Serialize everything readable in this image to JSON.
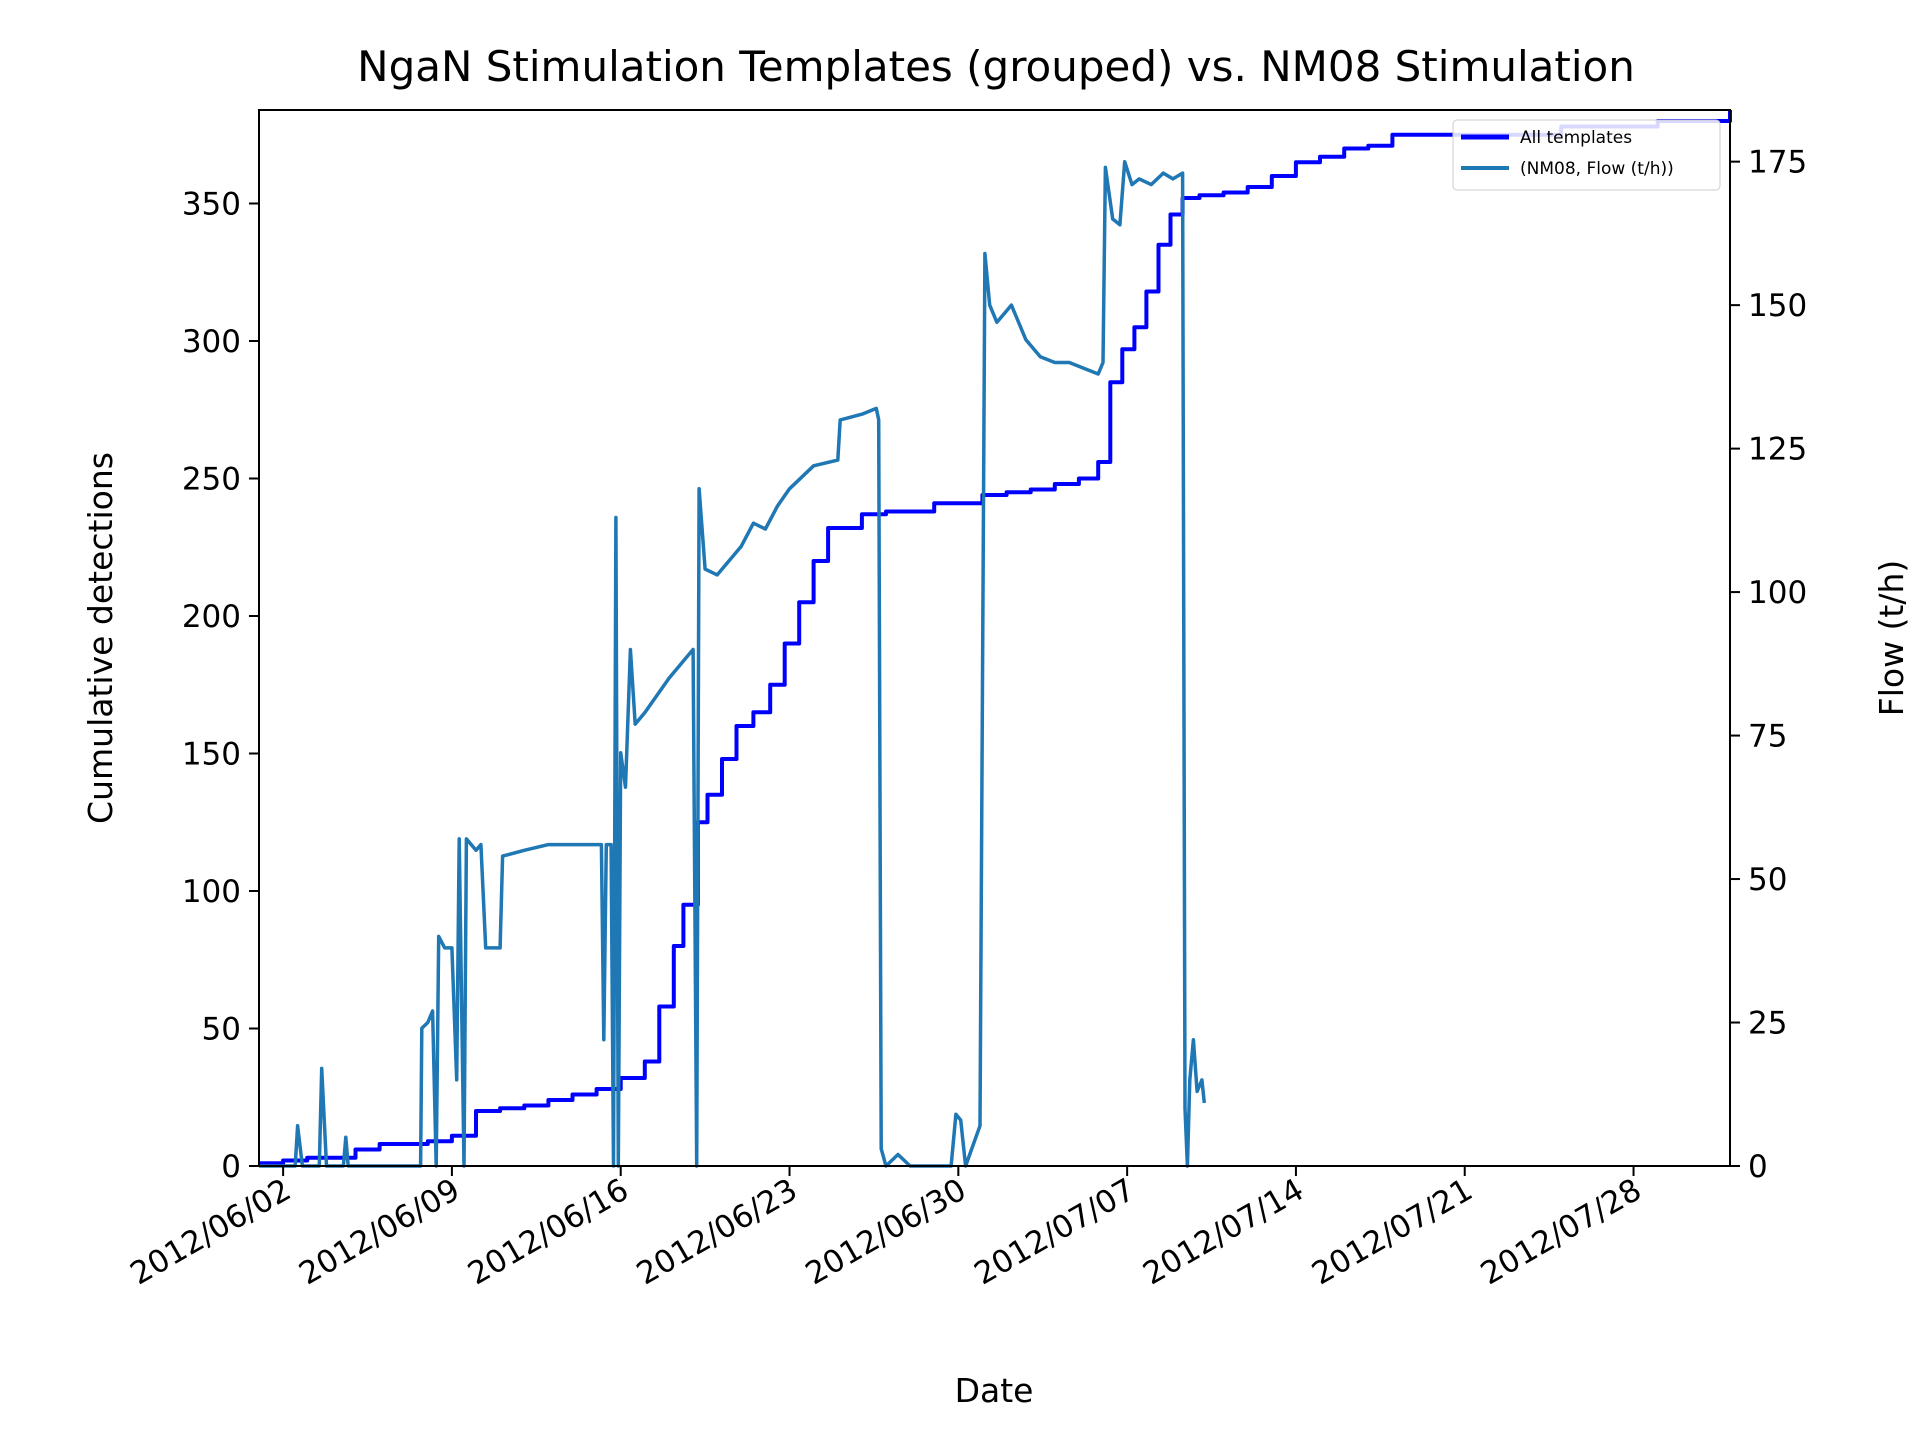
{
  "chart_data": {
    "type": "line",
    "title": "NgaN Stimulation Templates (grouped) vs. NM08 Stimulation",
    "xlabel": "Date",
    "ylabel_left": "Cumulative detections",
    "ylabel_right": "Flow (t/h)",
    "x_ticks": [
      "2012/06/02",
      "2012/06/09",
      "2012/06/16",
      "2012/06/23",
      "2012/06/30",
      "2012/07/07",
      "2012/07/14",
      "2012/07/21",
      "2012/07/28"
    ],
    "x_range": [
      "2012/06/01",
      "2012/08/01"
    ],
    "y_left_ticks": [
      0,
      50,
      100,
      150,
      200,
      250,
      300,
      350
    ],
    "y_left_range": [
      0,
      384
    ],
    "y_right_ticks": [
      0,
      25,
      50,
      75,
      100,
      125,
      150,
      175
    ],
    "y_right_range": [
      0,
      184
    ],
    "legend_position": "upper right",
    "series": [
      {
        "name": "All templates",
        "axis": "left",
        "color": "#0000ff",
        "points": [
          [
            "2012/06/01",
            1
          ],
          [
            "2012/06/02",
            2
          ],
          [
            "2012/06/03",
            3
          ],
          [
            "2012/06/05",
            6
          ],
          [
            "2012/06/06",
            8
          ],
          [
            "2012/06/08",
            9
          ],
          [
            "2012/06/09",
            11
          ],
          [
            "2012/06/10",
            20
          ],
          [
            "2012/06/11",
            21
          ],
          [
            "2012/06/12",
            22
          ],
          [
            "2012/06/13",
            24
          ],
          [
            "2012/06/14",
            26
          ],
          [
            "2012/06/15",
            28
          ],
          [
            "2012/06/16",
            32
          ],
          [
            "2012/06/17",
            38
          ],
          [
            "2012/06/17.6",
            58
          ],
          [
            "2012/06/18.2",
            80
          ],
          [
            "2012/06/18.6",
            95
          ],
          [
            "2012/06/19.2",
            125
          ],
          [
            "2012/06/19.6",
            135
          ],
          [
            "2012/06/20.2",
            148
          ],
          [
            "2012/06/20.8",
            160
          ],
          [
            "2012/06/21.5",
            165
          ],
          [
            "2012/06/22.2",
            175
          ],
          [
            "2012/06/22.8",
            190
          ],
          [
            "2012/06/23.4",
            205
          ],
          [
            "2012/06/24",
            220
          ],
          [
            "2012/06/24.6",
            232
          ],
          [
            "2012/06/25.2",
            232
          ],
          [
            "2012/06/26",
            237
          ],
          [
            "2012/06/27",
            238
          ],
          [
            "2012/06/28",
            238
          ],
          [
            "2012/06/29",
            241
          ],
          [
            "2012/06/30",
            241
          ],
          [
            "2012/07/01",
            244
          ],
          [
            "2012/07/02",
            245
          ],
          [
            "2012/07/03",
            246
          ],
          [
            "2012/07/04",
            248
          ],
          [
            "2012/07/05",
            250
          ],
          [
            "2012/07/05.8",
            256
          ],
          [
            "2012/07/06.3",
            285
          ],
          [
            "2012/07/06.8",
            297
          ],
          [
            "2012/07/07.3",
            305
          ],
          [
            "2012/07/07.8",
            318
          ],
          [
            "2012/07/08.3",
            335
          ],
          [
            "2012/07/08.8",
            346
          ],
          [
            "2012/07/09.3",
            352
          ],
          [
            "2012/07/10",
            353
          ],
          [
            "2012/07/11",
            354
          ],
          [
            "2012/07/12",
            356
          ],
          [
            "2012/07/13",
            360
          ],
          [
            "2012/07/14",
            365
          ],
          [
            "2012/07/15",
            367
          ],
          [
            "2012/07/16",
            370
          ],
          [
            "2012/07/17",
            371
          ],
          [
            "2012/07/18",
            375
          ],
          [
            "2012/07/21",
            375
          ],
          [
            "2012/07/25",
            378
          ],
          [
            "2012/07/29",
            380
          ],
          [
            "2012/08/01",
            384
          ]
        ]
      },
      {
        "name": "(NM08, Flow (t/h))",
        "axis": "right",
        "color": "#1f77b4",
        "points": [
          [
            "2012/06/01",
            0
          ],
          [
            "2012/06/02.5",
            0
          ],
          [
            "2012/06/02.6",
            7
          ],
          [
            "2012/06/02.8",
            0
          ],
          [
            "2012/06/03.5",
            0
          ],
          [
            "2012/06/03.6",
            17
          ],
          [
            "2012/06/03.8",
            0
          ],
          [
            "2012/06/04.5",
            0
          ],
          [
            "2012/06/04.6",
            5
          ],
          [
            "2012/06/04.7",
            0
          ],
          [
            "2012/06/07.7",
            0
          ],
          [
            "2012/06/07.75",
            24
          ],
          [
            "2012/06/08",
            25
          ],
          [
            "2012/06/08.2",
            27
          ],
          [
            "2012/06/08.35",
            0
          ],
          [
            "2012/06/08.45",
            40
          ],
          [
            "2012/06/08.7",
            38
          ],
          [
            "2012/06/09",
            38
          ],
          [
            "2012/06/09.2",
            15
          ],
          [
            "2012/06/09.3",
            57
          ],
          [
            "2012/06/09.5",
            0
          ],
          [
            "2012/06/09.6",
            57
          ],
          [
            "2012/06/10",
            55
          ],
          [
            "2012/06/10.2",
            56
          ],
          [
            "2012/06/10.4",
            38
          ],
          [
            "2012/06/11",
            38
          ],
          [
            "2012/06/11.1",
            54
          ],
          [
            "2012/06/12",
            55
          ],
          [
            "2012/06/13",
            56
          ],
          [
            "2012/06/14",
            56
          ],
          [
            "2012/06/15.2",
            56
          ],
          [
            "2012/06/15.3",
            22
          ],
          [
            "2012/06/15.4",
            56
          ],
          [
            "2012/06/15.6",
            56
          ],
          [
            "2012/06/15.7",
            0
          ],
          [
            "2012/06/15.8",
            113
          ],
          [
            "2012/06/15.9",
            0
          ],
          [
            "2012/06/16",
            72
          ],
          [
            "2012/06/16.2",
            66
          ],
          [
            "2012/06/16.4",
            90
          ],
          [
            "2012/06/16.6",
            77
          ],
          [
            "2012/06/17",
            79
          ],
          [
            "2012/06/18",
            85
          ],
          [
            "2012/06/18.6",
            88
          ],
          [
            "2012/06/19",
            90
          ],
          [
            "2012/06/19.15",
            0
          ],
          [
            "2012/06/19.25",
            118
          ],
          [
            "2012/06/19.5",
            104
          ],
          [
            "2012/06/20",
            103
          ],
          [
            "2012/06/21",
            108
          ],
          [
            "2012/06/21.5",
            112
          ],
          [
            "2012/06/22",
            111
          ],
          [
            "2012/06/22.5",
            115
          ],
          [
            "2012/06/23",
            118
          ],
          [
            "2012/06/24",
            122
          ],
          [
            "2012/06/25",
            123
          ],
          [
            "2012/06/25.1",
            130
          ],
          [
            "2012/06/26",
            131
          ],
          [
            "2012/06/26.6",
            132
          ],
          [
            "2012/06/26.7",
            130
          ],
          [
            "2012/06/26.8",
            3
          ],
          [
            "2012/06/27",
            0
          ],
          [
            "2012/06/27.5",
            2
          ],
          [
            "2012/06/28",
            0
          ],
          [
            "2012/06/29.7",
            0
          ],
          [
            "2012/06/29.9",
            9
          ],
          [
            "2012/06/30.1",
            8
          ],
          [
            "2012/06/30.3",
            0
          ],
          [
            "2012/06/30.9",
            7
          ],
          [
            "2012/07/01.1",
            159
          ],
          [
            "2012/07/01.3",
            150
          ],
          [
            "2012/07/01.6",
            147
          ],
          [
            "2012/07/02.2",
            150
          ],
          [
            "2012/07/02.8",
            144
          ],
          [
            "2012/07/03.4",
            141
          ],
          [
            "2012/07/04",
            140
          ],
          [
            "2012/07/04.6",
            140
          ],
          [
            "2012/07/05.2",
            139
          ],
          [
            "2012/07/05.8",
            138
          ],
          [
            "2012/07/06",
            140
          ],
          [
            "2012/07/06.1",
            174
          ],
          [
            "2012/07/06.4",
            165
          ],
          [
            "2012/07/06.7",
            164
          ],
          [
            "2012/07/06.9",
            175
          ],
          [
            "2012/07/07.2",
            171
          ],
          [
            "2012/07/07.5",
            172
          ],
          [
            "2012/07/08",
            171
          ],
          [
            "2012/07/08.5",
            173
          ],
          [
            "2012/07/08.9",
            172
          ],
          [
            "2012/07/09.3",
            173
          ],
          [
            "2012/07/09.4",
            10
          ],
          [
            "2012/07/09.5",
            0
          ],
          [
            "2012/07/09.6",
            15
          ],
          [
            "2012/07/09.75",
            22
          ],
          [
            "2012/07/09.9",
            13
          ],
          [
            "2012/07/10.1",
            15
          ],
          [
            "2012/07/10.2",
            11
          ]
        ]
      }
    ]
  }
}
